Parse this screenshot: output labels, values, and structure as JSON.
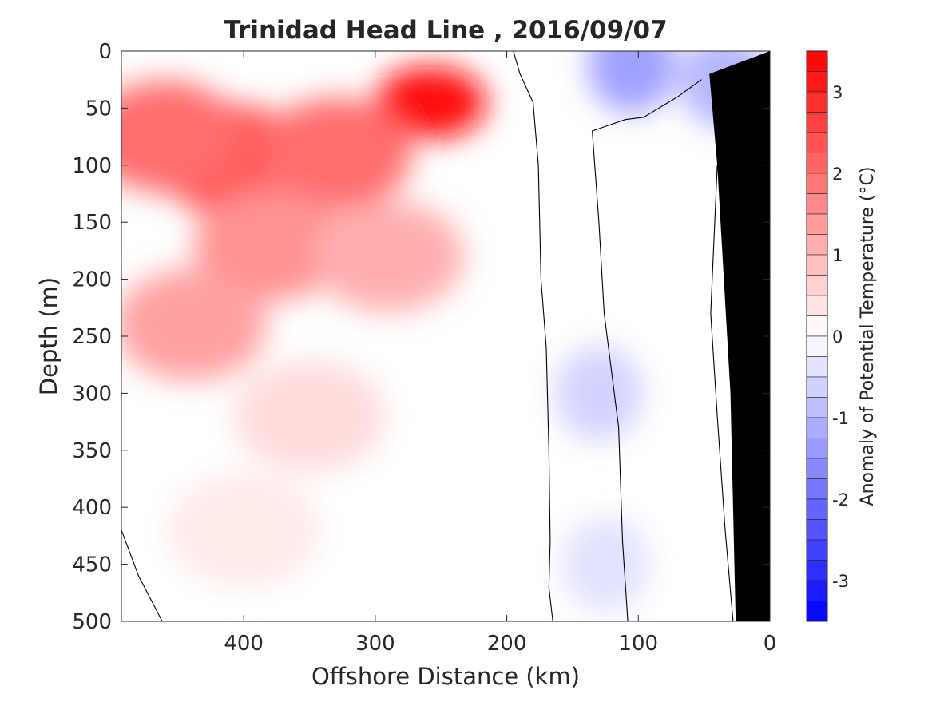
{
  "chart_data": {
    "type": "heatmap",
    "title": "Trinidad Head Line , 2016/09/07",
    "xlabel": "Offshore Distance (km)",
    "ylabel": "Depth (m)",
    "colorbar_label": "Anomaly of Potential Temperature (°C)",
    "x_direction": "reversed",
    "y_direction": "reversed",
    "xlim": [
      493,
      0
    ],
    "ylim": [
      0,
      500
    ],
    "xticks": [
      400,
      300,
      200,
      100,
      0
    ],
    "yticks": [
      0,
      50,
      100,
      150,
      200,
      250,
      300,
      350,
      400,
      450,
      500
    ],
    "clim": [
      -3.5,
      3.5
    ],
    "colorbar_ticks": [
      3,
      2,
      1,
      0,
      -1,
      -2,
      -3
    ],
    "contour_interval": 0.25,
    "zero_contour": "black line",
    "bathymetry_color": "#000000",
    "colors": {
      "positive": "#ff0000",
      "negative": "#0000ff",
      "zero": "#ffffff"
    },
    "anomaly_features": [
      {
        "kind": "warm core",
        "x": 258,
        "depth": 45,
        "value": 3.4
      },
      {
        "kind": "warm",
        "x": 410,
        "depth": 95,
        "value": 2.3
      },
      {
        "kind": "warm",
        "x": 460,
        "depth": 75,
        "value": 2.0
      },
      {
        "kind": "warm",
        "x": 330,
        "depth": 90,
        "value": 2.0
      },
      {
        "kind": "warm",
        "x": 380,
        "depth": 170,
        "value": 1.5
      },
      {
        "kind": "warm",
        "x": 290,
        "depth": 180,
        "value": 1.1
      },
      {
        "kind": "warm",
        "x": 440,
        "depth": 240,
        "value": 1.3
      },
      {
        "kind": "warm",
        "x": 350,
        "depth": 320,
        "value": 0.5
      },
      {
        "kind": "warm",
        "x": 400,
        "depth": 420,
        "value": 0.3
      },
      {
        "kind": "cool",
        "x": 105,
        "depth": 12,
        "value": -1.3
      },
      {
        "kind": "cool",
        "x": 35,
        "depth": 25,
        "value": -1.0
      },
      {
        "kind": "cool",
        "x": 130,
        "depth": 300,
        "value": -0.6
      },
      {
        "kind": "cool",
        "x": 125,
        "depth": 450,
        "value": -0.4
      }
    ]
  }
}
